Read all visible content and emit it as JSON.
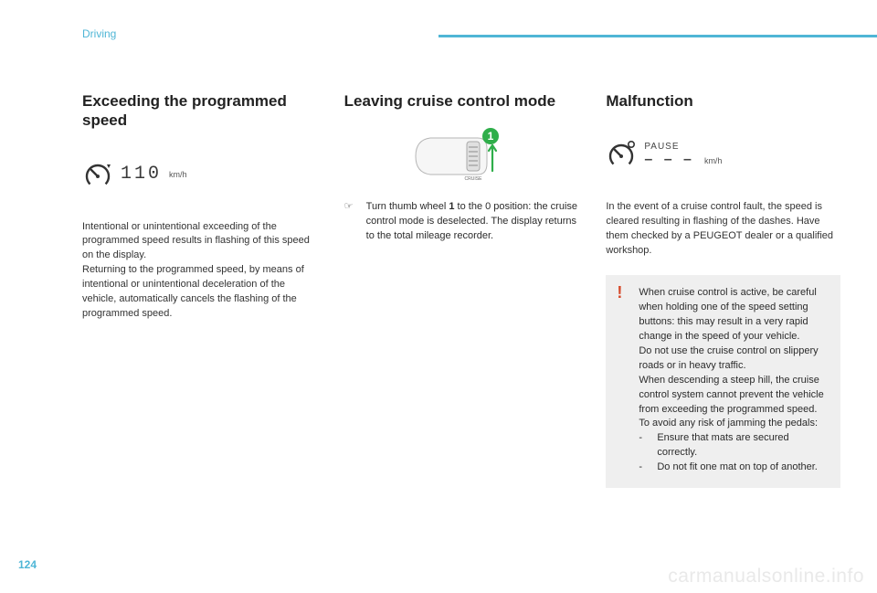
{
  "header": {
    "section": "Driving",
    "rule_color": "#4fb6d6"
  },
  "col1": {
    "heading": "Exceeding the programmed speed",
    "gauge": {
      "digits": "110",
      "unit": "km/h"
    },
    "para1": "Intentional or unintentional exceeding of the programmed speed results in flashing of this speed on the display.",
    "para2": "Returning to the programmed speed, by means of intentional or unintentional deceleration of the vehicle, automatically cancels the flashing of the programmed speed."
  },
  "col2": {
    "heading": "Leaving cruise control mode",
    "wheel_badge": "1",
    "bullet_mark": "☞",
    "bullet_text": "Turn thumb wheel 1 to the 0 position: the cruise control mode is deselected. The display returns to the total mileage recorder."
  },
  "col3": {
    "heading": "Malfunction",
    "gauge": {
      "label": "PAUSE",
      "dashes": "– – –",
      "unit": "km/h"
    },
    "para1": "In the event of a cruise control fault, the speed is cleared resulting in flashing of the dashes. Have them checked by a PEUGEOT dealer or a qualified workshop.",
    "warning": {
      "icon": "!",
      "p1": "When cruise control is active, be careful when holding one of the speed setting buttons: this may result in a very rapid change in the speed of your vehicle.",
      "p2": "Do not use the cruise control on slippery roads or in heavy traffic.",
      "p3": "When descending a steep hill, the cruise control system cannot prevent the vehicle from exceeding the programmed speed.",
      "p4": "To avoid any risk of jamming the pedals:",
      "li1": "Ensure that mats are secured correctly.",
      "li2": "Do not fit one mat on top of another."
    }
  },
  "footer": {
    "page_number": "124",
    "watermark": "carmanualsonline.info"
  },
  "colors": {
    "accent": "#4fb6d6",
    "warning_icon": "#d64a2b",
    "warning_bg": "#efefef",
    "text": "#2b2b2b"
  }
}
